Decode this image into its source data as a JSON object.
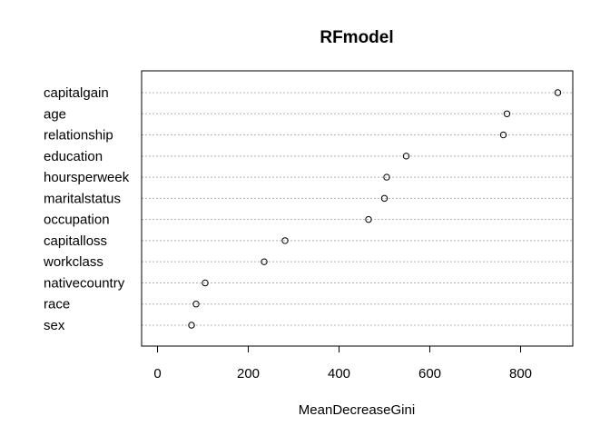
{
  "chart_data": {
    "type": "scatter",
    "title": "RFmodel",
    "xlabel": "MeanDecreaseGini",
    "ylabel": "",
    "xlim": [
      -35,
      915
    ],
    "xticks": [
      0,
      200,
      400,
      600,
      800
    ],
    "grid": true,
    "categories": [
      "capitalgain",
      "age",
      "relationship",
      "education",
      "hoursperweek",
      "maritalstatus",
      "occupation",
      "capitalloss",
      "workclass",
      "nativecountry",
      "race",
      "sex"
    ],
    "values": [
      882,
      770,
      762,
      548,
      505,
      500,
      465,
      281,
      235,
      105,
      85,
      75
    ]
  }
}
